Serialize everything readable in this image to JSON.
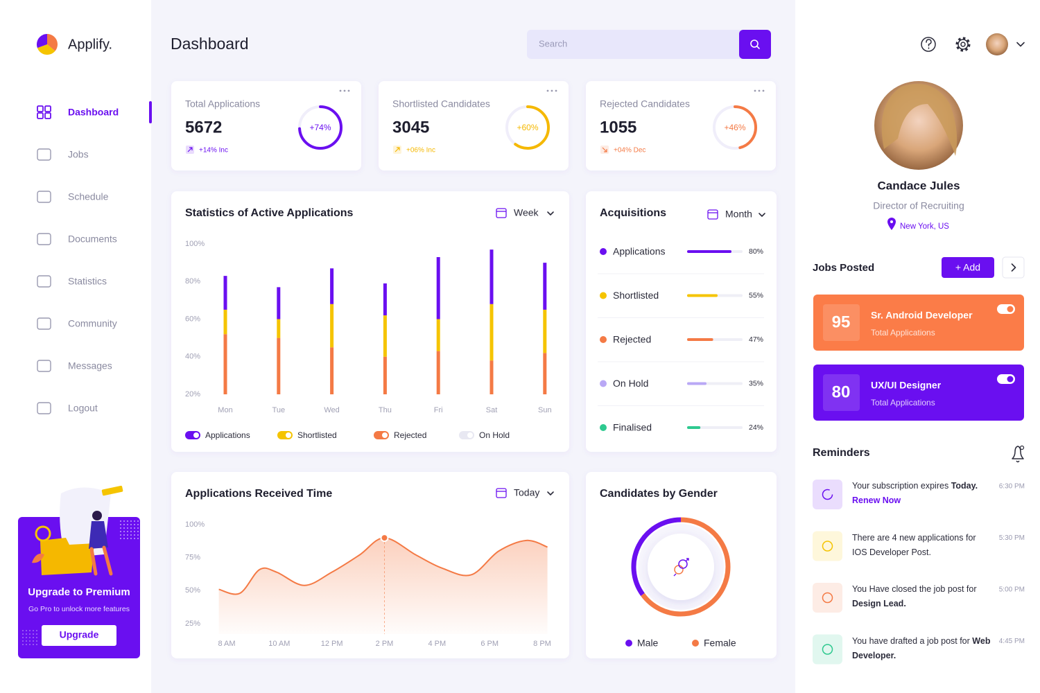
{
  "sidebar": {
    "brand": "Applify.",
    "nav": [
      "Dashboard",
      "Jobs",
      "Schedule",
      "Documents",
      "Statistics",
      "Community",
      "Messages",
      "Logout"
    ],
    "active": 0,
    "upgrade": {
      "title": "Upgrade to Premium",
      "subtitle": "Go Pro to unlock more features",
      "button": "Upgrade"
    }
  },
  "header": {
    "title": "Dashboard",
    "search_placeholder": "Search"
  },
  "stat_cards": [
    {
      "title": "Total Applications",
      "value": 5672,
      "percent": 74,
      "percent_label": "+74%",
      "change": "+14% Inc",
      "trend": "up",
      "color": "#6a0ff0"
    },
    {
      "title": "Shortlisted Candidates",
      "value": 3045,
      "percent": 60,
      "percent_label": "+60%",
      "change": "+06% Inc",
      "trend": "up",
      "color": "#f5b800"
    },
    {
      "title": "Rejected Candidates",
      "value": 1055,
      "percent": 46,
      "percent_label": "+46%",
      "change": "+04% Dec",
      "trend": "down",
      "color": "#f47a45"
    }
  ],
  "stats_chart": {
    "type": "bar",
    "stacked": true,
    "title": "Statistics of Active Applications",
    "period": "Week",
    "categories": [
      "Mon",
      "Tue",
      "Wed",
      "Thu",
      "Fri",
      "Sat",
      "Sun"
    ],
    "ylim": [
      20,
      100
    ],
    "yticks": [
      {
        "value": 100,
        "label": "100%"
      },
      {
        "value": 80,
        "label": "80%"
      },
      {
        "value": 60,
        "label": "60%"
      },
      {
        "value": 40,
        "label": "40%"
      },
      {
        "value": 20,
        "label": "20%"
      }
    ],
    "series": [
      {
        "name": "Applications",
        "color": "#6a0ff0",
        "values": [
          18,
          17,
          19,
          17,
          33,
          29,
          25
        ]
      },
      {
        "name": "Shortlisted",
        "color": "#f5c400",
        "values": [
          13,
          10,
          23,
          22,
          17,
          30,
          23
        ]
      },
      {
        "name": "Rejected",
        "color": "#f47a45",
        "values": [
          32,
          30,
          25,
          20,
          23,
          18,
          22
        ]
      },
      {
        "name": "On Hold",
        "color": "#e8e8f2",
        "values": [
          null,
          null,
          null,
          null,
          null,
          null,
          null
        ]
      }
    ]
  },
  "acquisitions": {
    "title": "Acquisitions",
    "period": "Month",
    "items": [
      {
        "name": "Applications",
        "value": 80,
        "value_label": "80%",
        "color": "#6a0ff0"
      },
      {
        "name": "Shortlisted",
        "value": 55,
        "value_label": "55%",
        "color": "#f5c400"
      },
      {
        "name": "Rejected",
        "value": 47,
        "value_label": "47%",
        "color": "#f47a45"
      },
      {
        "name": "On Hold",
        "value": 35,
        "value_label": "35%",
        "color": "#b9a8f5"
      },
      {
        "name": "Finalised",
        "value": 24,
        "value_label": "24%",
        "color": "#2ec98f"
      }
    ]
  },
  "received_chart": {
    "type": "line",
    "title": "Applications Received Time",
    "period": "Today",
    "x": [
      7.7,
      8.5,
      9.25,
      9.9,
      10.95,
      12,
      13.05,
      14,
      15.2,
      16.2,
      17.3,
      18.35,
      19.4,
      20.2
    ],
    "values": [
      51,
      48,
      66,
      64,
      54,
      64,
      77,
      90,
      77,
      67,
      62,
      80,
      88,
      83
    ],
    "highlight": 7,
    "color": "#f47a45",
    "xlim": [
      7.5,
      20.5
    ],
    "xticks": [
      {
        "value": 8,
        "label": "8 AM"
      },
      {
        "value": 10,
        "label": "10 AM"
      },
      {
        "value": 12,
        "label": "12 PM"
      },
      {
        "value": 14,
        "label": "2 PM"
      },
      {
        "value": 16,
        "label": "4 PM"
      },
      {
        "value": 18,
        "label": "6 PM"
      },
      {
        "value": 20,
        "label": "8 PM"
      }
    ],
    "ylim": [
      25,
      100
    ],
    "yticks": [
      {
        "value": 100,
        "label": "100%"
      },
      {
        "value": 75,
        "label": "75%"
      },
      {
        "value": 50,
        "label": "50%"
      },
      {
        "value": 25,
        "label": "25%"
      }
    ]
  },
  "gender_chart": {
    "type": "pie",
    "title": "Candidates by Gender",
    "categories": [
      "Male",
      "Female"
    ],
    "values": [
      35,
      65
    ],
    "colors": [
      "#6a0ff0",
      "#f47a45"
    ]
  },
  "profile": {
    "name": "Candace Jules",
    "role": "Director of Recruiting",
    "location": "New York, US"
  },
  "jobs": {
    "title": "Jobs Posted",
    "add": "+ Add",
    "items": [
      {
        "count": 95,
        "title": "Sr. Android Developer",
        "subtitle": "Total Applications",
        "color": "#fb7c48"
      },
      {
        "count": 80,
        "title": "UX/UI Designer",
        "subtitle": "Total Applications",
        "color": "#6a0ff0"
      }
    ]
  },
  "reminders": {
    "title": "Reminders",
    "items": [
      {
        "text": "Your subscription expires",
        "bold": "Today.",
        "link": "Renew Now",
        "time": "6:30 PM",
        "color": "#6a0ff0"
      },
      {
        "text": "There are 4 new applications for IOS Developer Post.",
        "time": "5:30 PM",
        "color": "#f5c400"
      },
      {
        "text": "You Have closed the job post for",
        "bold": "Design Lead.",
        "time": "5:00 PM",
        "color": "#f47a45"
      },
      {
        "text": "You have drafted a job post for",
        "bold": "Web Developer.",
        "time": "4:45 PM",
        "color": "#2ec98f"
      }
    ]
  }
}
